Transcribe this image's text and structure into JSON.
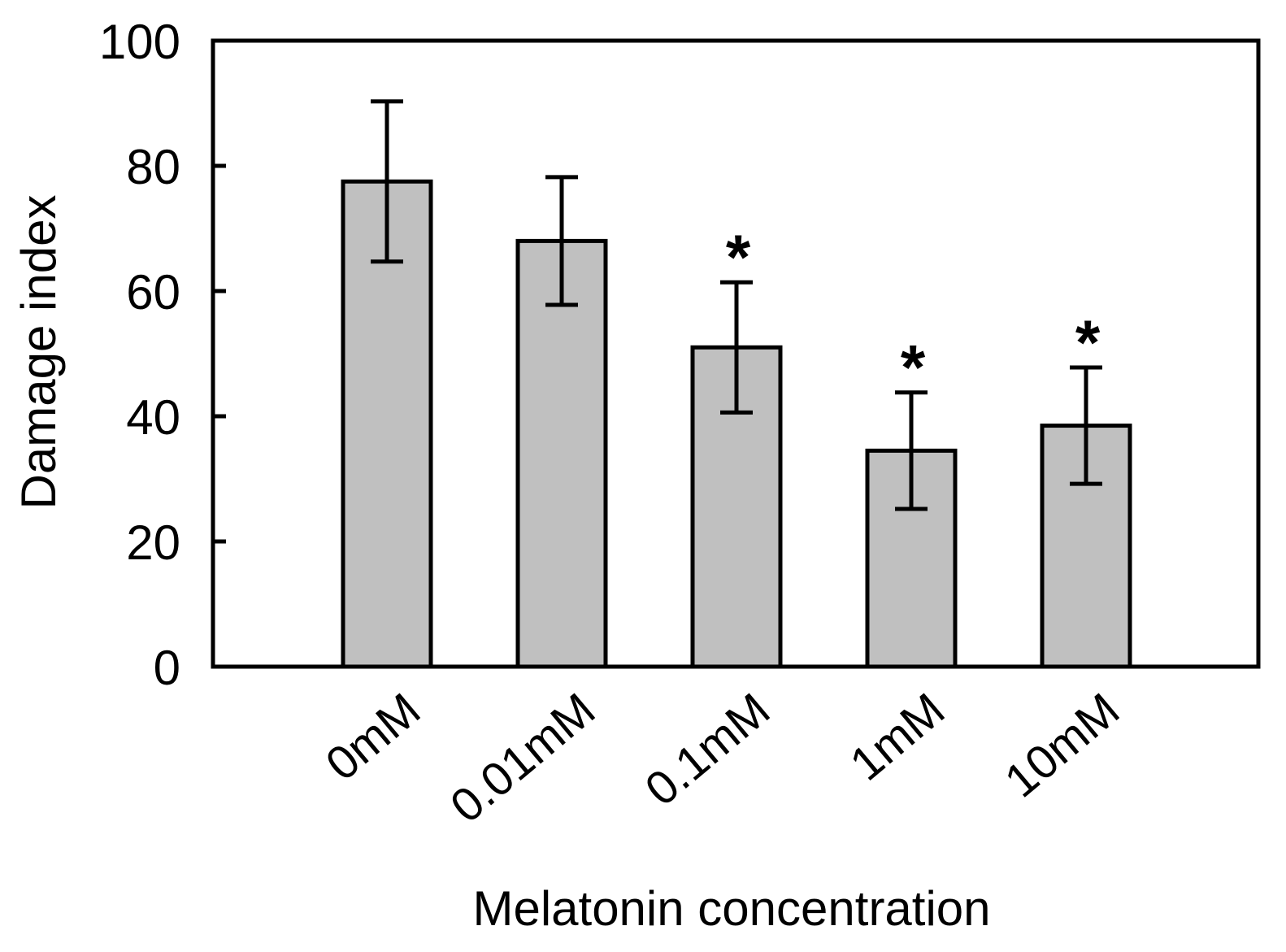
{
  "chart_data": {
    "type": "bar",
    "title": "",
    "xlabel": "Melatonin concentration",
    "ylabel": "Damage index",
    "ylim": [
      0,
      100
    ],
    "yticks": [
      0,
      20,
      40,
      60,
      80,
      100
    ],
    "ytick_labels": [
      "0",
      "20",
      "40",
      "60",
      "80",
      "100"
    ],
    "grid": false,
    "categories": [
      "0mM",
      "0.01mM",
      "0.1mM",
      "1mM",
      "10mM"
    ],
    "values": [
      77.5,
      68,
      51,
      34.5,
      38.5
    ],
    "errors": [
      12.8,
      10.2,
      10.4,
      9.3,
      9.3
    ],
    "significance": [
      "",
      "",
      "*",
      "*",
      "*"
    ],
    "bar_color": "#c0c0c0",
    "edge_color": "#000000"
  }
}
